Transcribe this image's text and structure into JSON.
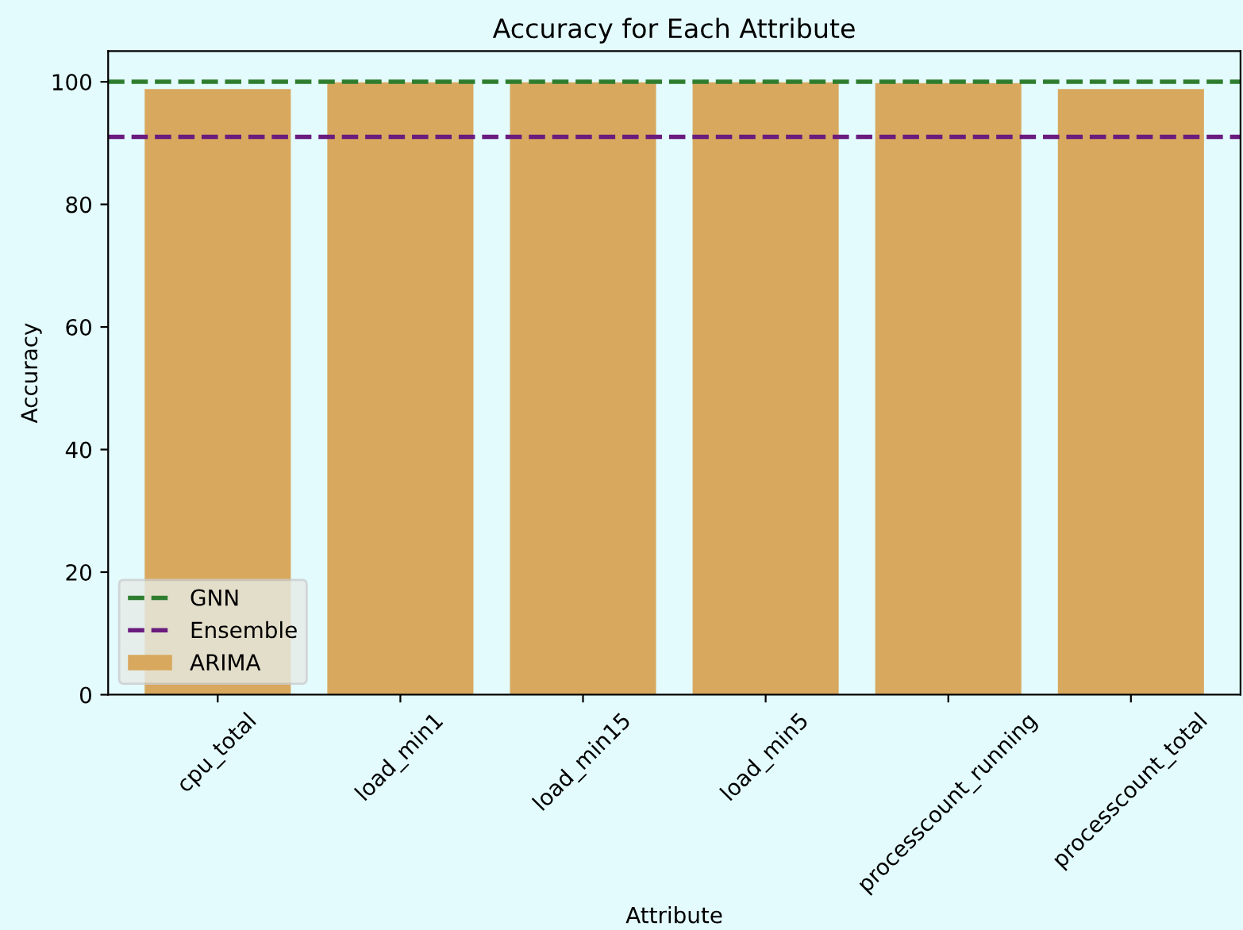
{
  "chart_data": {
    "type": "bar",
    "title": "Accuracy for Each Attribute",
    "xlabel": "Attribute",
    "ylabel": "Accuracy",
    "categories": [
      "cpu_total",
      "load_min1",
      "load_min15",
      "load_min5",
      "processcount_running",
      "processcount_total"
    ],
    "series": [
      {
        "name": "ARIMA",
        "color": "#d8a85e",
        "values": [
          98.8,
          99.9,
          99.9,
          99.9,
          99.8,
          98.8
        ]
      }
    ],
    "ref_lines": [
      {
        "axis": "y",
        "value": 100,
        "label": "GNN",
        "color": "#2e7d2e",
        "line_style": "dashed"
      },
      {
        "axis": "y",
        "value": 91,
        "label": "Ensemble",
        "color": "#6a1b7e",
        "line_style": "dashed"
      }
    ],
    "ylim": [
      0,
      105
    ],
    "yticks": [
      0,
      20,
      40,
      60,
      80,
      100
    ],
    "legend": "bottom left",
    "grid": false
  }
}
